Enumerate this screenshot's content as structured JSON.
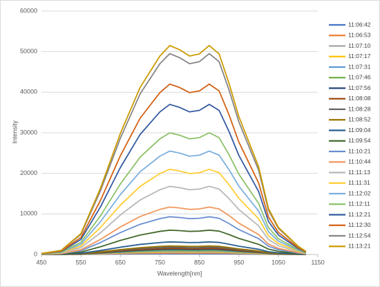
{
  "chart_data": {
    "type": "line",
    "x_label": "Wavelength[nm]",
    "y_label": "Intensity",
    "x": [
      450,
      500,
      550,
      600,
      650,
      700,
      750,
      775,
      800,
      825,
      850,
      875,
      900,
      925,
      950,
      1000,
      1025,
      1050,
      1100,
      1120
    ],
    "xlim": [
      450,
      1150
    ],
    "xticks": [
      450,
      550,
      650,
      750,
      850,
      950,
      1050,
      1150
    ],
    "ylim": [
      0,
      60000
    ],
    "yticks": [
      0,
      10000,
      20000,
      30000,
      40000,
      50000,
      60000
    ],
    "grid": true,
    "legend": "right",
    "series": [
      {
        "name": "11:06:42",
        "color": "#4472c4",
        "values": [
          1,
          4,
          20,
          64,
          116,
          160,
          190,
          200,
          196,
          190,
          192,
          200,
          192,
          164,
          132,
          84,
          44,
          26,
          8,
          3
        ]
      },
      {
        "name": "11:06:53",
        "color": "#ed7d31",
        "values": [
          2,
          7,
          35,
          112,
          203,
          280,
          333,
          350,
          343,
          333,
          336,
          350,
          336,
          287,
          231,
          147,
          77,
          46,
          14,
          5
        ]
      },
      {
        "name": "11:07:10",
        "color": "#a5a5a5",
        "values": [
          3,
          10,
          50,
          160,
          290,
          400,
          475,
          500,
          490,
          475,
          480,
          500,
          480,
          410,
          330,
          210,
          110,
          65,
          20,
          8
        ]
      },
      {
        "name": "11:07:17",
        "color": "#ffc000",
        "values": [
          4,
          14,
          70,
          224,
          406,
          560,
          665,
          700,
          686,
          665,
          672,
          700,
          672,
          574,
          462,
          294,
          154,
          91,
          28,
          11
        ]
      },
      {
        "name": "11:07:31",
        "color": "#5b9bd5",
        "values": [
          5,
          18,
          90,
          288,
          522,
          720,
          855,
          900,
          882,
          855,
          864,
          900,
          864,
          738,
          594,
          378,
          198,
          117,
          36,
          14
        ]
      },
      {
        "name": "11:07:46",
        "color": "#70ad47",
        "values": [
          6,
          22,
          110,
          352,
          638,
          880,
          1045,
          1100,
          1078,
          1045,
          1056,
          1100,
          1056,
          902,
          726,
          462,
          242,
          143,
          44,
          17
        ]
      },
      {
        "name": "11:07:56",
        "color": "#264478",
        "values": [
          7,
          26,
          130,
          416,
          754,
          1040,
          1235,
          1300,
          1274,
          1235,
          1248,
          1300,
          1248,
          1066,
          858,
          546,
          286,
          169,
          52,
          20
        ]
      },
      {
        "name": "11:08:08",
        "color": "#9e480e",
        "values": [
          8,
          30,
          150,
          480,
          870,
          1200,
          1425,
          1500,
          1470,
          1425,
          1440,
          1500,
          1440,
          1230,
          990,
          630,
          330,
          195,
          60,
          23
        ]
      },
      {
        "name": "11:08:28",
        "color": "#636363",
        "values": [
          9,
          36,
          180,
          576,
          1044,
          1440,
          1710,
          1800,
          1764,
          1710,
          1728,
          1800,
          1728,
          1476,
          1188,
          756,
          396,
          234,
          72,
          27
        ]
      },
      {
        "name": "11:08:52",
        "color": "#997300",
        "values": [
          11,
          42,
          210,
          672,
          1218,
          1680,
          1995,
          2100,
          2058,
          1995,
          2016,
          2100,
          2016,
          1722,
          1386,
          882,
          462,
          273,
          84,
          32
        ]
      },
      {
        "name": "11:09:04",
        "color": "#255e91",
        "values": [
          16,
          62,
          310,
          992,
          1798,
          2480,
          2945,
          3100,
          3038,
          2945,
          2976,
          3100,
          2976,
          2542,
          2046,
          1302,
          682,
          403,
          124,
          47
        ]
      },
      {
        "name": "11:09:54",
        "color": "#43682b",
        "values": [
          30,
          120,
          600,
          1920,
          3480,
          4800,
          5700,
          6000,
          5880,
          5700,
          5760,
          6000,
          5760,
          4920,
          3960,
          2520,
          1320,
          780,
          240,
          90
        ]
      },
      {
        "name": "11:10:21",
        "color": "#698ed0",
        "values": [
          47,
          186,
          930,
          2976,
          5394,
          7440,
          8835,
          9300,
          9114,
          8835,
          8928,
          9300,
          8928,
          7626,
          6138,
          3906,
          2046,
          1209,
          372,
          140
        ]
      },
      {
        "name": "11:10:44",
        "color": "#f1975a",
        "values": [
          59,
          234,
          1170,
          3744,
          6786,
          9360,
          11115,
          11700,
          11466,
          11115,
          11232,
          11700,
          11232,
          9594,
          7722,
          4914,
          2574,
          1521,
          468,
          176
        ]
      },
      {
        "name": "11:11:13",
        "color": "#b7b7b7",
        "values": [
          84,
          336,
          1680,
          5376,
          9744,
          13440,
          15960,
          16800,
          16464,
          15960,
          16128,
          16800,
          16128,
          13776,
          11088,
          7056,
          3696,
          2184,
          672,
          252
        ]
      },
      {
        "name": "11:11:31",
        "color": "#ffcd33",
        "values": [
          105,
          420,
          2100,
          6720,
          12180,
          16800,
          19950,
          21000,
          20580,
          19950,
          20160,
          21000,
          20160,
          17220,
          13860,
          8820,
          4620,
          2730,
          840,
          315
        ]
      },
      {
        "name": "11:12:02",
        "color": "#7cafdd",
        "values": [
          128,
          510,
          2550,
          8160,
          14790,
          20400,
          24225,
          25500,
          24990,
          24225,
          24480,
          25500,
          24480,
          20910,
          16830,
          10710,
          5610,
          3315,
          1020,
          383
        ]
      },
      {
        "name": "11:12:11",
        "color": "#8cc168",
        "values": [
          150,
          600,
          3000,
          9600,
          17400,
          24000,
          28500,
          30000,
          29400,
          28500,
          28800,
          30000,
          28800,
          24600,
          19800,
          12600,
          6600,
          3900,
          1200,
          450
        ]
      },
      {
        "name": "11:12:21",
        "color": "#335aa1",
        "values": [
          185,
          740,
          3700,
          11840,
          21460,
          29600,
          35150,
          37000,
          36260,
          35150,
          35520,
          37000,
          35520,
          30340,
          24420,
          15540,
          8140,
          4810,
          1480,
          555
        ]
      },
      {
        "name": "11:12:30",
        "color": "#d26012",
        "values": [
          210,
          840,
          4200,
          13440,
          24360,
          33600,
          39900,
          42000,
          41160,
          39900,
          40320,
          42000,
          40320,
          34440,
          27720,
          17640,
          9240,
          5460,
          1680,
          630
        ]
      },
      {
        "name": "11:12:54",
        "color": "#848484",
        "values": [
          248,
          990,
          4950,
          15840,
          28710,
          39600,
          47025,
          49500,
          48510,
          47025,
          47520,
          49500,
          47520,
          40590,
          32670,
          20790,
          10890,
          6435,
          1980,
          743
        ]
      },
      {
        "name": "11:13:21",
        "color": "#cc9a00",
        "values": [
          258,
          1030,
          5150,
          16480,
          29870,
          41200,
          48925,
          51500,
          50470,
          48925,
          49440,
          51500,
          49440,
          42230,
          33990,
          21630,
          11330,
          6695,
          2060,
          773
        ]
      }
    ]
  }
}
